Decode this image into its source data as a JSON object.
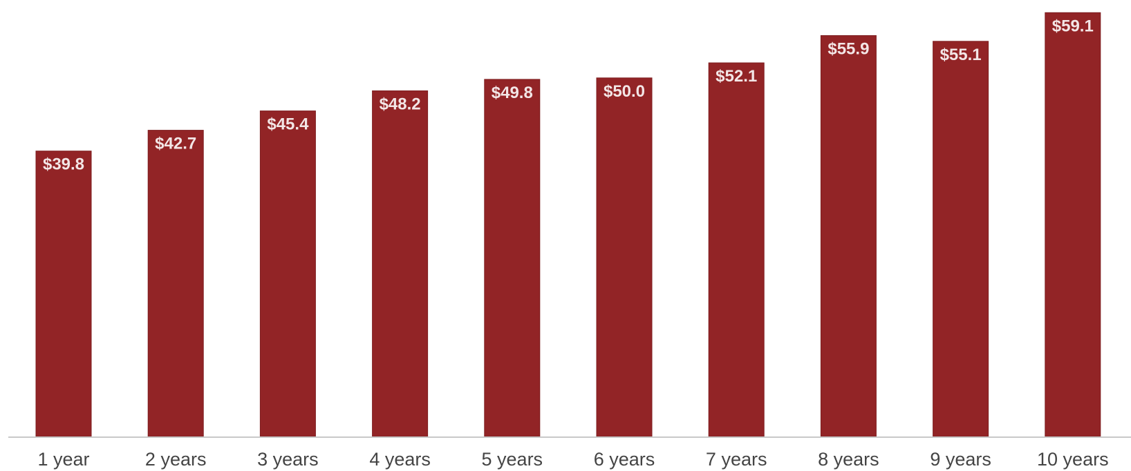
{
  "chart_data": {
    "type": "bar",
    "title": "",
    "xlabel": "",
    "ylabel": "",
    "categories": [
      "1 year",
      "2 years",
      "3 years",
      "4 years",
      "5 years",
      "6 years",
      "7 years",
      "8 years",
      "9 years",
      "10 years"
    ],
    "values": [
      39.8,
      42.7,
      45.4,
      48.2,
      49.8,
      50.0,
      52.1,
      55.9,
      55.1,
      59.1
    ],
    "data_labels": [
      "$39.8",
      "$42.7",
      "$45.4",
      "$48.2",
      "$49.8",
      "$50.0",
      "$52.1",
      "$55.9",
      "$55.1",
      "$59.1"
    ],
    "ylim": [
      0,
      59.9
    ],
    "grid": false,
    "legend": "none",
    "y_axis_visible": false,
    "data_label_position": "inside-top",
    "colors": {
      "bar": "#922426",
      "bar_edge": "#7d1d1f",
      "data_label": "#f3e6e6",
      "axis_line": "#c8c8c8",
      "tick_label": "#444444"
    }
  }
}
